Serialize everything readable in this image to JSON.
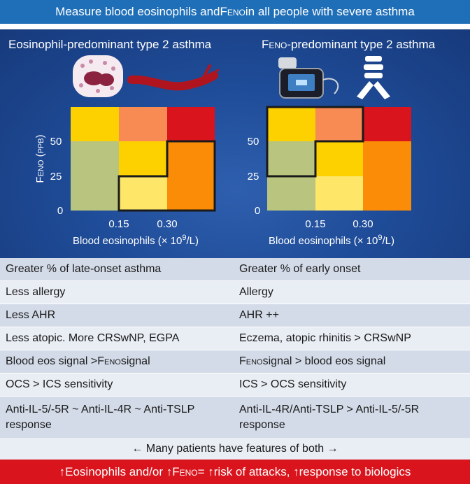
{
  "banner": {
    "prefix": "Measure blood eosinophils and ",
    "feno": "Feno",
    "suffix": " in all people with severe asthma"
  },
  "left_panel": {
    "title": "Eosinophil-predominant type 2 asthma",
    "y_axis_label": "Feno (ppb)",
    "x_axis_label": "Blood eosinophils (× 10",
    "x_axis_sup": "9",
    "x_axis_unit": "/L)",
    "y_ticks": [
      "50",
      "25",
      "0"
    ],
    "x_ticks": [
      "0.15",
      "0.30"
    ]
  },
  "right_panel": {
    "title_feno": "Feno",
    "title_rest": "-predominant type 2 asthma",
    "y_ticks": [
      "50",
      "25",
      "0"
    ],
    "x_ticks": [
      "0.15",
      "0.30"
    ],
    "x_axis_label": "Blood eosinophils (× 10",
    "x_axis_sup": "9",
    "x_axis_unit": "/L)"
  },
  "heatmap": {
    "colors": {
      "top": [
        "#fdd100",
        "#f88a54",
        "#d9141c"
      ],
      "middle": [
        "#b9c47e",
        "#fdd100",
        "#fb8c07"
      ],
      "bottom": [
        "#b9c47e",
        "#fde668",
        "#fb8c07"
      ]
    }
  },
  "comparison": {
    "rows": [
      {
        "left": "Greater % of late-onset asthma",
        "right": "Greater % of early onset"
      },
      {
        "left": "Less allergy",
        "right": "Allergy"
      },
      {
        "left": "Less AHR",
        "right": "AHR ++"
      },
      {
        "left": "Less atopic. More CRSwNP, EGPA",
        "right": "Eczema, atopic rhinitis > CRSwNP"
      },
      {
        "left_pre": "Blood eos signal > ",
        "left_feno": "Feno",
        "left_post": " signal",
        "right_feno": "Feno",
        "right_post": " signal > blood eos signal"
      },
      {
        "left": "OCS > ICS sensitivity",
        "right": "ICS > OCS sensitivity"
      },
      {
        "left": "Anti-IL-5/-5R ~ Anti-IL-4R ~ Anti-TSLP response",
        "right": "Anti-IL-4R/Anti-TSLP > Anti-IL-5/-5R response"
      }
    ]
  },
  "note": "←  Many patients have features of both  →",
  "footer": {
    "part1": "↑Eosinophils and/or ↑",
    "feno": "Feno",
    "part2": " = ↑risk of attacks, ↑response to biologics"
  },
  "icons": [
    "eosinophil-cell-icon",
    "blood-vessel-icon",
    "feno-device-icon",
    "airway-icon"
  ]
}
